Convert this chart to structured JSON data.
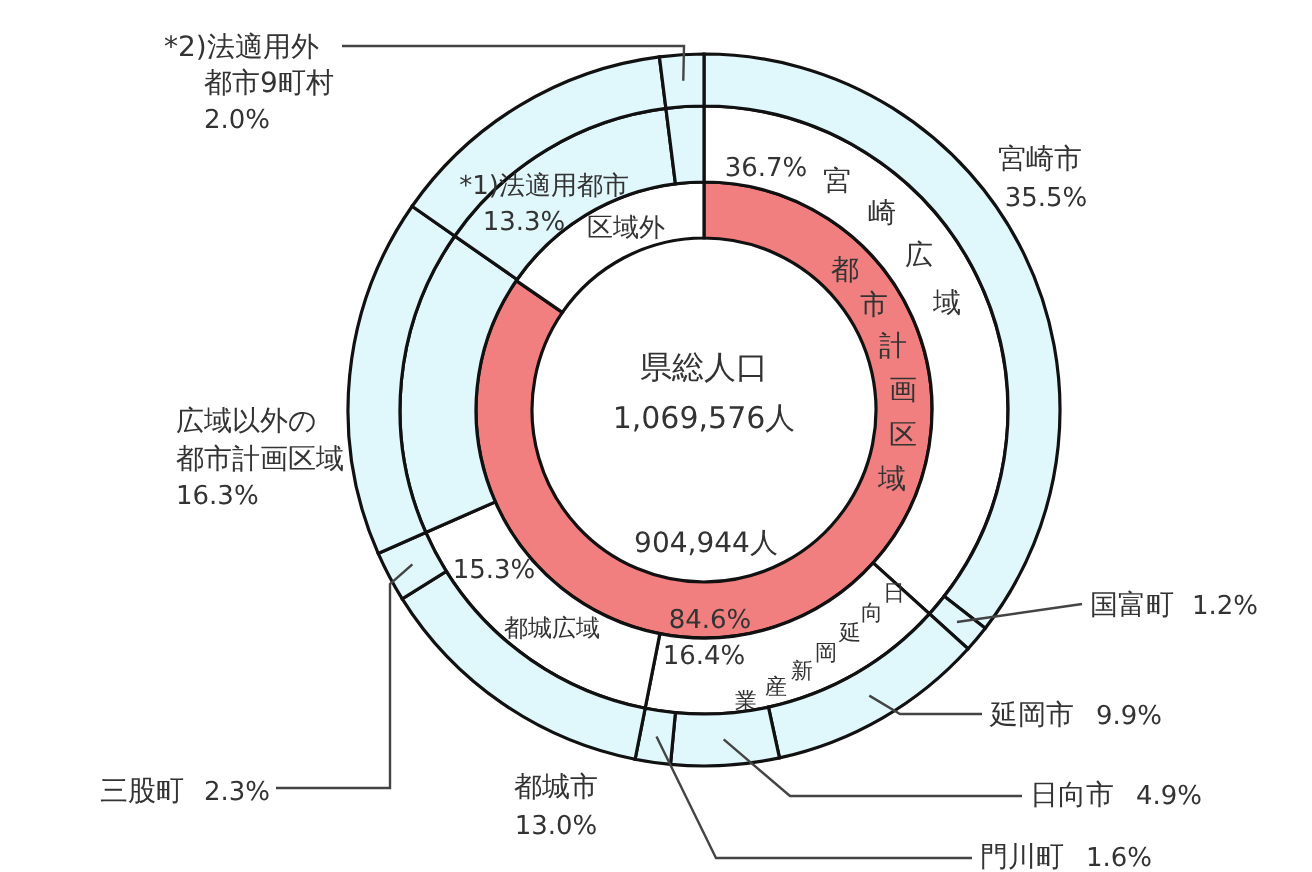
{
  "chart_data": [
    {
      "type": "donut",
      "title": "県総人口",
      "subtitle": "1,069,576人",
      "annotations": [
        "904,944人"
      ],
      "categories": [
        "都市計画区域",
        "区域外"
      ],
      "values": [
        84.6,
        15.4
      ],
      "colors": [
        "#f27f7f",
        "#ffffff"
      ],
      "value_labels": [
        "84.6%",
        null
      ]
    },
    {
      "type": "donut",
      "categories": [
        "宮崎広域",
        "日向延岡新産業",
        "都城広域",
        null,
        null,
        null
      ],
      "values": [
        36.7,
        16.4,
        15.3,
        16.3,
        13.3,
        2.0
      ],
      "colors": [
        "#ffffff",
        "#ffffff",
        "#ffffff",
        "#e0f8fc",
        "#e0f8fc",
        "#e0f8fc"
      ],
      "value_labels": [
        "36.7%",
        "16.4%",
        "15.3%",
        null,
        null,
        null
      ]
    },
    {
      "type": "donut",
      "categories": [
        "宮崎市",
        "国富町",
        "延岡市",
        "日向市",
        "門川町",
        "都城市",
        "三股町",
        "広域以外の都市計画区域",
        "*1)法適用都市",
        "*2)法適用外都市9町村"
      ],
      "values": [
        35.5,
        1.2,
        9.9,
        4.9,
        1.6,
        13.0,
        2.3,
        16.3,
        13.3,
        2.0
      ],
      "colors": [
        "#e0f8fc",
        "#e0f8fc",
        "#e0f8fc",
        "#e0f8fc",
        "#e0f8fc",
        "#e0f8fc",
        "#e0f8fc",
        "#e0f8fc",
        "#e0f8fc",
        "#e0f8fc"
      ],
      "value_labels": [
        "35.5%",
        "1.2%",
        "9.9%",
        "4.9%",
        "1.6%",
        "13.0%",
        "2.3%",
        "16.3%",
        "13.3%",
        "2.0%"
      ]
    }
  ]
}
